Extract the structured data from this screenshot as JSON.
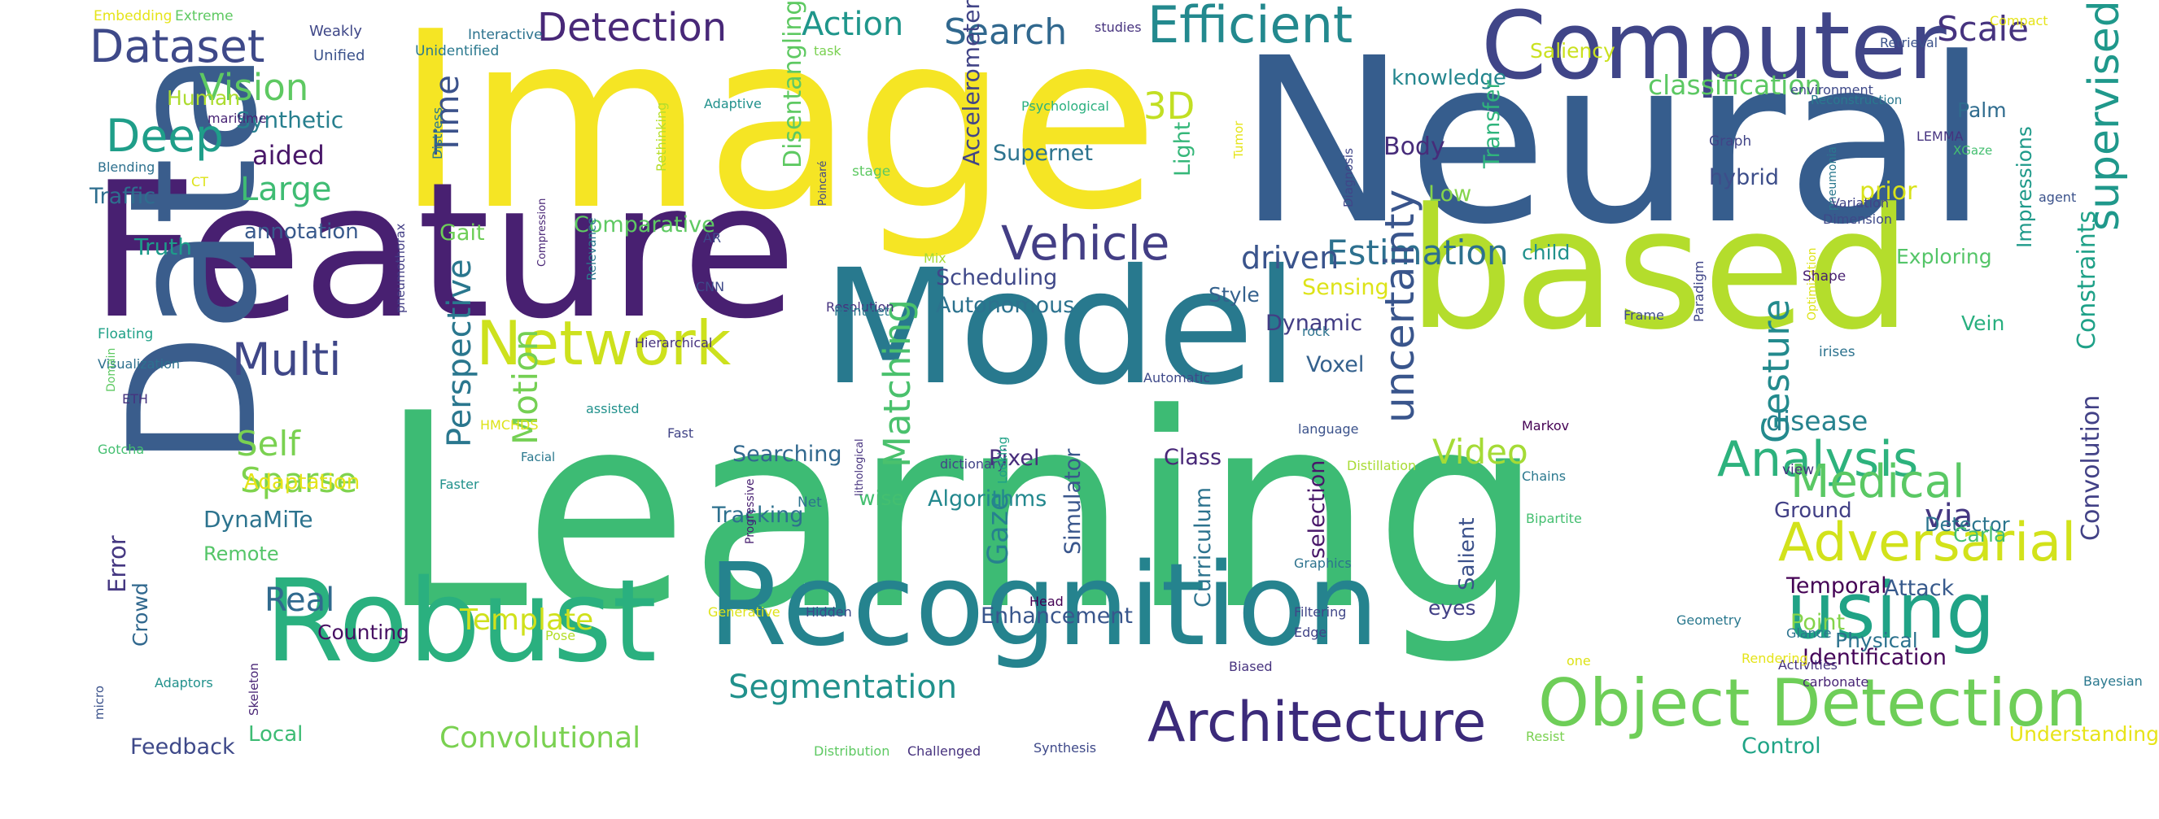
{
  "words": [
    {
      "text": "Learning",
      "color": "#3dbb74"
    },
    {
      "text": "Image",
      "color": "#f5e524"
    },
    {
      "text": "Neural",
      "color": "#365d8d"
    },
    {
      "text": "Feature",
      "color": "#482071"
    },
    {
      "text": "based",
      "color": "#b4dd2c"
    },
    {
      "text": "Model",
      "color": "#28798e"
    },
    {
      "text": "Data",
      "color": "#3a5d8c"
    },
    {
      "text": "Robust",
      "color": "#2ab07f"
    },
    {
      "text": "Recognition",
      "color": "#25838e"
    },
    {
      "text": "Computer",
      "color": "#404588"
    },
    {
      "text": "Network",
      "color": "#cde11d"
    },
    {
      "text": "Object Detection",
      "color": "#6ece58"
    },
    {
      "text": "using",
      "color": "#20a386"
    },
    {
      "text": "Architecture",
      "color": "#3b2a7a"
    },
    {
      "text": "Efficient",
      "color": "#23898e"
    },
    {
      "text": "Adversarial",
      "color": "#d2e21b"
    },
    {
      "text": "Analysis",
      "color": "#2db27d"
    },
    {
      "text": "Medical",
      "color": "#5ac864"
    },
    {
      "text": "Vehicle",
      "color": "#433e85"
    },
    {
      "text": "Dataset",
      "color": "#3e4989"
    },
    {
      "text": "Deep",
      "color": "#1f9e89"
    },
    {
      "text": "Detection",
      "color": "#482878"
    },
    {
      "text": "Multi",
      "color": "#3f4788"
    },
    {
      "text": "Search",
      "color": "#31688e"
    },
    {
      "text": "Action",
      "color": "#1f968b"
    },
    {
      "text": "Scale",
      "color": "#46337f"
    },
    {
      "text": "Vision",
      "color": "#5ec962"
    },
    {
      "text": "supervised",
      "color": "#1f988b"
    },
    {
      "text": "Estimation",
      "color": "#2d708e"
    },
    {
      "text": "uncertainty",
      "color": "#39558c"
    },
    {
      "text": "Gesture",
      "color": "#238a8d"
    },
    {
      "text": "Segmentation",
      "color": "#21918c"
    },
    {
      "text": "Matching",
      "color": "#4ac16d"
    },
    {
      "text": "Video",
      "color": "#a5db36"
    },
    {
      "text": "Perspective",
      "color": "#2a778e"
    },
    {
      "text": "Time",
      "color": "#3b528b"
    },
    {
      "text": "Self",
      "color": "#7ad151"
    },
    {
      "text": "Sparse",
      "color": "#7fd34e"
    },
    {
      "text": "Motion",
      "color": "#75d054"
    },
    {
      "text": "Real",
      "color": "#306a8e"
    },
    {
      "text": "Large",
      "color": "#3fbc73"
    },
    {
      "text": "3D",
      "color": "#c2df23"
    },
    {
      "text": "driven",
      "color": "#3a548c"
    },
    {
      "text": "Convolutional",
      "color": "#7ad151"
    },
    {
      "text": "Template",
      "color": "#d0e11c"
    },
    {
      "text": "Gaze",
      "color": "#26828e"
    },
    {
      "text": "Enhancement",
      "color": "#39568c"
    },
    {
      "text": "classification",
      "color": "#5cc863"
    },
    {
      "text": "Body",
      "color": "#472c7a"
    },
    {
      "text": "knowledge",
      "color": "#24868e"
    },
    {
      "text": "via",
      "color": "#453882"
    },
    {
      "text": "Synthetic",
      "color": "#277f8e"
    },
    {
      "text": "aided",
      "color": "#481668"
    },
    {
      "text": "Human",
      "color": "#addc30"
    },
    {
      "text": "Traffic",
      "color": "#2e6e8e"
    },
    {
      "text": "annotation",
      "color": "#38598c"
    },
    {
      "text": "Truth",
      "color": "#1e9b8a"
    },
    {
      "text": "Gait",
      "color": "#6ece58"
    },
    {
      "text": "Comparative",
      "color": "#5ec962"
    },
    {
      "text": "Saliency",
      "color": "#cae11f"
    },
    {
      "text": "Supernet",
      "color": "#2c738e"
    },
    {
      "text": "Transfer",
      "color": "#2fb47c"
    },
    {
      "text": "Light",
      "color": "#35b779"
    },
    {
      "text": "Disentangling",
      "color": "#5ec962"
    },
    {
      "text": "Accelerometer",
      "color": "#414487"
    },
    {
      "text": "Scheduling",
      "color": "#3f4889"
    },
    {
      "text": "Autonomous",
      "color": "#2c728e"
    },
    {
      "text": "Style",
      "color": "#34618d"
    },
    {
      "text": "Sensing",
      "color": "#dde318"
    },
    {
      "text": "Dynamic",
      "color": "#433d84"
    },
    {
      "text": "Voxel",
      "color": "#34618d"
    },
    {
      "text": "Low",
      "color": "#84d44b"
    },
    {
      "text": "hybrid",
      "color": "#3d4e8a"
    },
    {
      "text": "prior",
      "color": "#d8e219"
    },
    {
      "text": "child",
      "color": "#21918c"
    },
    {
      "text": "Impressions",
      "color": "#1f9a8a"
    },
    {
      "text": "Exploring",
      "color": "#54c568"
    },
    {
      "text": "Palm",
      "color": "#2f6c8e"
    },
    {
      "text": "Vein",
      "color": "#29af7f"
    },
    {
      "text": "Constraints",
      "color": "#1fa188"
    },
    {
      "text": "Convolution",
      "color": "#424186"
    },
    {
      "text": "disease",
      "color": "#26828e"
    },
    {
      "text": "Ground",
      "color": "#424086"
    },
    {
      "text": "Detector",
      "color": "#2b758e"
    },
    {
      "text": "Carla",
      "color": "#44bf70"
    },
    {
      "text": "Attack",
      "color": "#375a8c"
    },
    {
      "text": "Temporal",
      "color": "#440154"
    },
    {
      "text": "eyes",
      "color": "#424086"
    },
    {
      "text": "Physical",
      "color": "#2c728e"
    },
    {
      "text": "Point",
      "color": "#84d44b"
    },
    {
      "text": "Identification",
      "color": "#450559"
    },
    {
      "text": "Control",
      "color": "#20a486"
    },
    {
      "text": "Understanding",
      "color": "#e7e419"
    },
    {
      "text": "Salient",
      "color": "#3b518b"
    },
    {
      "text": "selection",
      "color": "#481769"
    },
    {
      "text": "Curriculum",
      "color": "#2c738e"
    },
    {
      "text": "Simulator",
      "color": "#39568c"
    },
    {
      "text": "Class",
      "color": "#482878"
    },
    {
      "text": "Pixel",
      "color": "#472d7b"
    },
    {
      "text": "Algorithms",
      "color": "#23888e"
    },
    {
      "text": "Searching",
      "color": "#31688e"
    },
    {
      "text": "Adaptation",
      "color": "#e5e419"
    },
    {
      "text": "DynaMiTe",
      "color": "#2c738e"
    },
    {
      "text": "Remote",
      "color": "#54c568"
    },
    {
      "text": "wise",
      "color": "#44bf70"
    },
    {
      "text": "Tracking",
      "color": "#2d708e"
    },
    {
      "text": "Error",
      "color": "#453781"
    },
    {
      "text": "Crowd",
      "color": "#31688e"
    },
    {
      "text": "Counting",
      "color": "#471063"
    },
    {
      "text": "Local",
      "color": "#3dbc74"
    },
    {
      "text": "Feedback",
      "color": "#3e4989"
    },
    {
      "text": "Embedding",
      "color": "#e5e419"
    },
    {
      "text": "Extreme",
      "color": "#5ec962"
    },
    {
      "text": "Weakly",
      "color": "#3f4788"
    },
    {
      "text": "Unified",
      "color": "#3b528b"
    },
    {
      "text": "Interactive",
      "color": "#2c728e"
    },
    {
      "text": "Unidentified",
      "color": "#2a788e"
    },
    {
      "text": "task",
      "color": "#7ad151"
    },
    {
      "text": "studies",
      "color": "#46327e"
    },
    {
      "text": "Compact",
      "color": "#e5e419"
    },
    {
      "text": "Retrieval",
      "color": "#3b528b"
    },
    {
      "text": "maritime",
      "color": "#482475"
    },
    {
      "text": "Distress",
      "color": "#2a788e"
    },
    {
      "text": "Adaptive",
      "color": "#21918c"
    },
    {
      "text": "Rethinking",
      "color": "#b5de2b"
    },
    {
      "text": "Blending",
      "color": "#2d708e"
    },
    {
      "text": "Poincaré",
      "color": "#404688"
    },
    {
      "text": "stage",
      "color": "#5ec962"
    },
    {
      "text": "Psychological",
      "color": "#2ab07f"
    },
    {
      "text": "Tumor",
      "color": "#e5e419"
    },
    {
      "text": "environment",
      "color": "#3e4989"
    },
    {
      "text": "Reconstruction",
      "color": "#2a788e"
    },
    {
      "text": "Graph",
      "color": "#414487"
    },
    {
      "text": "LEMMA",
      "color": "#46337f"
    },
    {
      "text": "XGaze",
      "color": "#44bf70"
    },
    {
      "text": "Diagnosis",
      "color": "#404688"
    },
    {
      "text": "pneumonia",
      "color": "#2a788e"
    },
    {
      "text": "Variation",
      "color": "#414487"
    },
    {
      "text": "Dimension",
      "color": "#3e4989"
    },
    {
      "text": "agent",
      "color": "#3b528b"
    },
    {
      "text": "CT",
      "color": "#dde318"
    },
    {
      "text": "AR",
      "color": "#3e4989"
    },
    {
      "text": "Mix",
      "color": "#a8db34"
    },
    {
      "text": "Floating",
      "color": "#1fa187"
    },
    {
      "text": "pneumothorax",
      "color": "#433e85"
    },
    {
      "text": "Compression",
      "color": "#482475"
    },
    {
      "text": "Relevance",
      "color": "#2a788e"
    },
    {
      "text": "CNN",
      "color": "#3e4989"
    },
    {
      "text": "Resolution",
      "color": "#46337f"
    },
    {
      "text": "PointNet",
      "color": "#2a788e"
    },
    {
      "text": "Hierarchical",
      "color": "#46327e"
    },
    {
      "text": "rock",
      "color": "#2c728e"
    },
    {
      "text": "Frame",
      "color": "#3e4989"
    },
    {
      "text": "Paradigm",
      "color": "#404688"
    },
    {
      "text": "Optimization",
      "color": "#dde318"
    },
    {
      "text": "Shape",
      "color": "#482071"
    },
    {
      "text": "irises",
      "color": "#2c728e"
    },
    {
      "text": "Visualization",
      "color": "#2d708e"
    },
    {
      "text": "Domain",
      "color": "#5ec962"
    },
    {
      "text": "ETH",
      "color": "#46337f"
    },
    {
      "text": "Automatic",
      "color": "#3e4989"
    },
    {
      "text": "assisted",
      "color": "#21918c"
    },
    {
      "text": "language",
      "color": "#3b528b"
    },
    {
      "text": "Distillation",
      "color": "#a8db34"
    },
    {
      "text": "Gotcha",
      "color": "#44bf70"
    },
    {
      "text": "Facial",
      "color": "#2a788e"
    },
    {
      "text": "Markov",
      "color": "#440154"
    },
    {
      "text": "Fast",
      "color": "#414487"
    },
    {
      "text": "HMCHDS",
      "color": "#dde318"
    },
    {
      "text": "Progressive",
      "color": "#482071"
    },
    {
      "text": "Net",
      "color": "#2c728e"
    },
    {
      "text": "Faster",
      "color": "#21918c"
    },
    {
      "text": "dictionary",
      "color": "#414487"
    },
    {
      "text": "lithological",
      "color": "#46327e"
    },
    {
      "text": "Looking",
      "color": "#1fa187"
    },
    {
      "text": "Chains",
      "color": "#2a788e"
    },
    {
      "text": "view",
      "color": "#46337f"
    },
    {
      "text": "Bipartite",
      "color": "#44bf70"
    },
    {
      "text": "Graphics",
      "color": "#2c728e"
    },
    {
      "text": "Head",
      "color": "#440154"
    },
    {
      "text": "Filtering",
      "color": "#404688"
    },
    {
      "text": "Geometry",
      "color": "#2a788e"
    },
    {
      "text": "Activities",
      "color": "#46337f"
    },
    {
      "text": "Generative",
      "color": "#dde318"
    },
    {
      "text": "Hidden",
      "color": "#3e4989"
    },
    {
      "text": "Pose",
      "color": "#b5de2b"
    },
    {
      "text": "Glance",
      "color": "#2c728e"
    },
    {
      "text": "Edge",
      "color": "#414487"
    },
    {
      "text": "Biased",
      "color": "#46327e"
    },
    {
      "text": "one",
      "color": "#dde318"
    },
    {
      "text": "carbonate",
      "color": "#482475"
    },
    {
      "text": "Rendering",
      "color": "#e5e419"
    },
    {
      "text": "Bayesian",
      "color": "#2a788e"
    },
    {
      "text": "micro",
      "color": "#3b528b"
    },
    {
      "text": "Adaptors",
      "color": "#21918c"
    },
    {
      "text": "Skeleton",
      "color": "#482475"
    },
    {
      "text": "Distribution",
      "color": "#5ec962"
    },
    {
      "text": "Challenged",
      "color": "#46327e"
    },
    {
      "text": "Synthesis",
      "color": "#3e4989"
    },
    {
      "text": "Resist",
      "color": "#7ad151"
    }
  ]
}
